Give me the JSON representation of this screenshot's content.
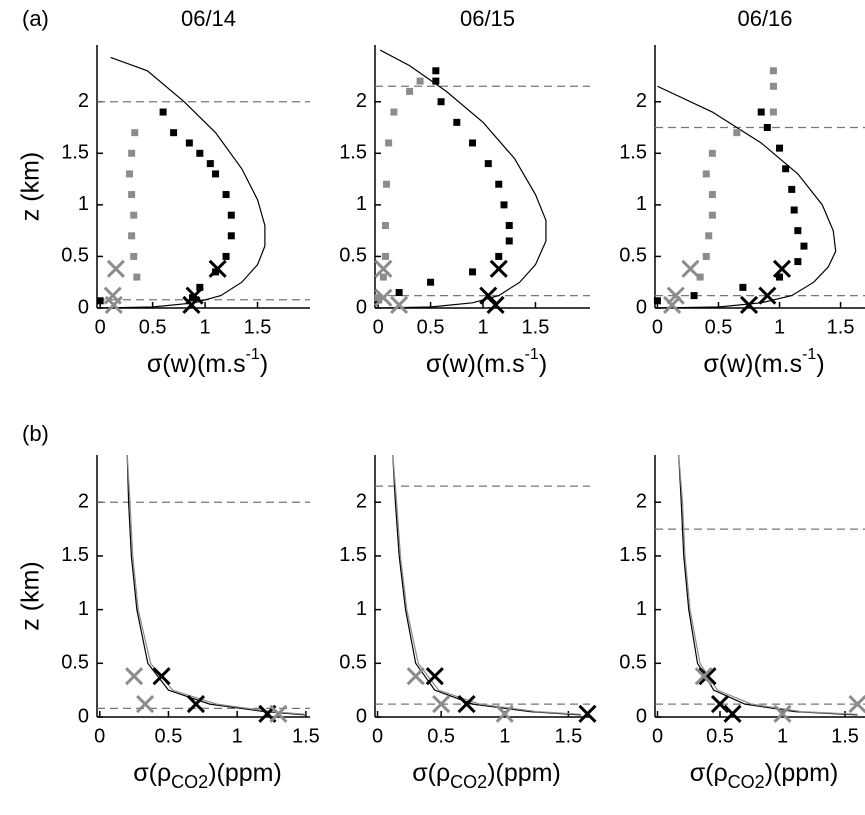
{
  "chart_data": [
    {
      "type": "scatter",
      "panel_label": "(a)",
      "title": "06/14",
      "ylabel": "z (km)",
      "xlabel": {
        "text": "σ(w)(m.s",
        "sup": "-1",
        "after": ")"
      },
      "xlim": [
        -0.03,
        2.0
      ],
      "ylim": [
        0,
        2.55
      ],
      "xticks": [
        0,
        0.5,
        1,
        1.5
      ],
      "yticks": [
        0,
        0.5,
        1,
        1.5,
        2
      ],
      "hlines": [
        2.0,
        0.08
      ],
      "series": [
        {
          "marker": "line",
          "color": "#000000",
          "x": [
            0,
            0.5,
            0.9,
            1.15,
            1.35,
            1.5,
            1.57,
            1.57,
            1.5,
            1.35,
            1.1,
            0.8,
            0.45,
            0.1
          ],
          "y": [
            0,
            0.01,
            0.05,
            0.12,
            0.25,
            0.42,
            0.6,
            0.8,
            1.05,
            1.35,
            1.7,
            2.0,
            2.3,
            2.43
          ]
        },
        {
          "marker": "square",
          "color": "#000000",
          "x": [
            0.6,
            0.7,
            0.85,
            0.95,
            1.05,
            1.1,
            1.2,
            1.25,
            1.25,
            1.2,
            1.1,
            0.95,
            0.88,
            0
          ],
          "y": [
            1.9,
            1.7,
            1.6,
            1.5,
            1.4,
            1.3,
            1.1,
            0.9,
            0.7,
            0.5,
            0.35,
            0.2,
            0.1,
            0.07
          ]
        },
        {
          "marker": "square",
          "color": "#8c8c8c",
          "x": [
            0.33,
            0.3,
            0.28,
            0.3,
            0.32,
            0.3,
            0.32,
            0.35
          ],
          "y": [
            1.7,
            1.5,
            1.3,
            1.1,
            0.9,
            0.7,
            0.5,
            0.3
          ]
        },
        {
          "marker": "x",
          "color": "#000000",
          "x": [
            1.12,
            0.9,
            0.87
          ],
          "y": [
            0.38,
            0.12,
            0.03
          ]
        },
        {
          "marker": "x",
          "color": "#8c8c8c",
          "x": [
            0.15,
            0.12,
            0.13
          ],
          "y": [
            0.38,
            0.12,
            0.03
          ]
        }
      ]
    },
    {
      "type": "scatter",
      "title": "06/15",
      "xlabel": {
        "text": "σ(w)(m.s",
        "sup": "-1",
        "after": ")"
      },
      "xlim": [
        -0.03,
        2.02
      ],
      "ylim": [
        0,
        2.55
      ],
      "xticks": [
        0,
        0.5,
        1,
        1.5
      ],
      "yticks": [
        0,
        0.5,
        1,
        1.5,
        2
      ],
      "hlines": [
        2.15,
        0.12
      ],
      "series": [
        {
          "marker": "line",
          "color": "#000000",
          "x": [
            0,
            0.5,
            0.9,
            1.15,
            1.35,
            1.5,
            1.6,
            1.6,
            1.5,
            1.3,
            1.0,
            0.65,
            0.3,
            0.02
          ],
          "y": [
            0,
            0.01,
            0.05,
            0.12,
            0.25,
            0.42,
            0.65,
            0.85,
            1.1,
            1.45,
            1.8,
            2.1,
            2.35,
            2.5
          ]
        },
        {
          "marker": "square",
          "color": "#000000",
          "x": [
            0.55,
            0.55,
            0.6,
            0.75,
            0.9,
            1.05,
            1.15,
            1.2,
            1.25,
            1.25,
            1.15,
            0.9,
            0.5,
            0.2,
            0
          ],
          "y": [
            2.3,
            2.2,
            2.0,
            1.8,
            1.6,
            1.4,
            1.2,
            1.0,
            0.8,
            0.65,
            0.5,
            0.35,
            0.25,
            0.15,
            0.08
          ]
        },
        {
          "marker": "square",
          "color": "#8c8c8c",
          "x": [
            0.4,
            0.3,
            0.15,
            0.1,
            0.08,
            0.07,
            0.07,
            0.05,
            0.0
          ],
          "y": [
            2.2,
            2.1,
            1.9,
            1.6,
            1.2,
            0.8,
            0.5,
            0.3,
            0.1
          ]
        },
        {
          "marker": "x",
          "color": "#000000",
          "x": [
            1.15,
            1.05,
            1.12
          ],
          "y": [
            0.38,
            0.12,
            0.03
          ]
        },
        {
          "marker": "x",
          "color": "#8c8c8c",
          "x": [
            0.05,
            0.05,
            0.2
          ],
          "y": [
            0.38,
            0.1,
            0.03
          ]
        }
      ]
    },
    {
      "type": "scatter",
      "title": "06/16",
      "xlabel": {
        "text": "σ(w)(m.s",
        "sup": "-1",
        "after": ")"
      },
      "xlim": [
        -0.02,
        1.7
      ],
      "ylim": [
        0,
        2.55
      ],
      "xticks": [
        0,
        0.5,
        1,
        1.5
      ],
      "yticks": [
        0,
        0.5,
        1,
        1.5,
        2
      ],
      "hlines": [
        1.75,
        0.12
      ],
      "series": [
        {
          "marker": "line",
          "color": "#000000",
          "x": [
            0,
            0.5,
            0.85,
            1.1,
            1.28,
            1.4,
            1.46,
            1.44,
            1.35,
            1.15,
            0.85,
            0.45,
            0
          ],
          "y": [
            0,
            0.01,
            0.05,
            0.12,
            0.25,
            0.4,
            0.55,
            0.75,
            1.0,
            1.3,
            1.6,
            1.9,
            2.15
          ]
        },
        {
          "marker": "square",
          "color": "#000000",
          "x": [
            0.85,
            0.9,
            1.0,
            1.05,
            1.1,
            1.12,
            1.15,
            1.2,
            1.15,
            1.0,
            0.7,
            0.3,
            0
          ],
          "y": [
            1.9,
            1.75,
            1.55,
            1.35,
            1.15,
            0.95,
            0.75,
            0.6,
            0.45,
            0.3,
            0.2,
            0.12,
            0.07
          ]
        },
        {
          "marker": "square",
          "color": "#8c8c8c",
          "x": [
            0.95,
            0.95,
            0.95,
            0.65,
            0.45,
            0.4,
            0.45,
            0.45,
            0.42,
            0.4,
            0.35
          ],
          "y": [
            2.3,
            2.15,
            1.9,
            1.7,
            1.5,
            1.3,
            1.1,
            0.9,
            0.7,
            0.5,
            0.3
          ]
        },
        {
          "marker": "x",
          "color": "#000000",
          "x": [
            1.02,
            0.9,
            0.75
          ],
          "y": [
            0.38,
            0.12,
            0.03
          ]
        },
        {
          "marker": "x",
          "color": "#8c8c8c",
          "x": [
            0.27,
            0.15,
            0.12
          ],
          "y": [
            0.38,
            0.12,
            0.03
          ]
        }
      ]
    },
    {
      "type": "scatter",
      "panel_label": "(b)",
      "ylabel": "z (km)",
      "xlabel": {
        "text": "σ(ρ",
        "sub": "CO2",
        "after": ")(ppm)"
      },
      "xlim": [
        -0.02,
        1.53
      ],
      "ylim": [
        0,
        2.44
      ],
      "xticks": [
        0,
        0.5,
        1,
        1.5
      ],
      "yticks": [
        0,
        0.5,
        1,
        1.5,
        2
      ],
      "hlines": [
        2.0,
        0.08
      ],
      "series": [
        {
          "marker": "line",
          "color": "#000000",
          "x": [
            0.2,
            0.21,
            0.23,
            0.27,
            0.35,
            0.5,
            0.8,
            1.2,
            1.5
          ],
          "y": [
            2.44,
            2.0,
            1.5,
            1.0,
            0.5,
            0.25,
            0.12,
            0.05,
            0.02
          ]
        },
        {
          "marker": "line",
          "color": "#8c8c8c",
          "x": [
            0.2,
            0.22,
            0.24,
            0.28,
            0.37,
            0.53,
            0.85,
            1.25,
            1.5
          ],
          "y": [
            2.44,
            2.0,
            1.5,
            1.0,
            0.5,
            0.25,
            0.12,
            0.05,
            0.025
          ]
        },
        {
          "marker": "x",
          "color": "#000000",
          "x": [
            0.45,
            0.7,
            1.22
          ],
          "y": [
            0.38,
            0.12,
            0.03
          ]
        },
        {
          "marker": "x",
          "color": "#8c8c8c",
          "x": [
            0.25,
            0.33,
            1.3
          ],
          "y": [
            0.38,
            0.12,
            0.03
          ]
        }
      ]
    },
    {
      "type": "scatter",
      "xlabel": {
        "text": "σ(ρ",
        "sub": "CO2",
        "after": ")(ppm)"
      },
      "xlim": [
        -0.02,
        1.67
      ],
      "ylim": [
        0,
        2.44
      ],
      "xticks": [
        0,
        0.5,
        1,
        1.5
      ],
      "yticks": [
        0,
        0.5,
        1,
        1.5,
        2
      ],
      "hlines": [
        2.15,
        0.12
      ],
      "series": [
        {
          "marker": "line",
          "color": "#000000",
          "x": [
            0.12,
            0.14,
            0.17,
            0.22,
            0.3,
            0.45,
            0.75,
            1.2,
            1.6
          ],
          "y": [
            2.44,
            2.0,
            1.5,
            1.0,
            0.5,
            0.25,
            0.12,
            0.05,
            0.02
          ]
        },
        {
          "marker": "line",
          "color": "#8c8c8c",
          "x": [
            0.12,
            0.15,
            0.18,
            0.23,
            0.32,
            0.48,
            0.8,
            1.25,
            1.6
          ],
          "y": [
            2.44,
            2.0,
            1.5,
            1.0,
            0.5,
            0.25,
            0.12,
            0.05,
            0.025
          ]
        },
        {
          "marker": "x",
          "color": "#000000",
          "x": [
            0.45,
            0.7,
            1.65
          ],
          "y": [
            0.38,
            0.12,
            0.03
          ]
        },
        {
          "marker": "x",
          "color": "#8c8c8c",
          "x": [
            0.3,
            0.5,
            1.0
          ],
          "y": [
            0.38,
            0.12,
            0.03
          ]
        }
      ]
    },
    {
      "type": "scatter",
      "xlabel": {
        "text": "σ(ρ",
        "sub": "CO2",
        "after": ")(ppm)"
      },
      "xlim": [
        -0.02,
        1.66
      ],
      "ylim": [
        0,
        2.44
      ],
      "xticks": [
        0,
        0.5,
        1,
        1.5
      ],
      "yticks": [
        0,
        0.5,
        1,
        1.5,
        2
      ],
      "hlines": [
        1.75,
        0.12
      ],
      "series": [
        {
          "marker": "line",
          "color": "#000000",
          "x": [
            0.17,
            0.19,
            0.21,
            0.25,
            0.32,
            0.45,
            0.7,
            1.1,
            1.6
          ],
          "y": [
            2.44,
            2.0,
            1.5,
            1.0,
            0.5,
            0.25,
            0.12,
            0.05,
            0.02
          ]
        },
        {
          "marker": "line",
          "color": "#8c8c8c",
          "x": [
            0.17,
            0.2,
            0.22,
            0.26,
            0.34,
            0.48,
            0.75,
            1.15,
            1.6
          ],
          "y": [
            2.44,
            2.0,
            1.5,
            1.0,
            0.5,
            0.25,
            0.12,
            0.05,
            0.025
          ]
        },
        {
          "marker": "x",
          "color": "#000000",
          "x": [
            0.4,
            0.5,
            0.6
          ],
          "y": [
            0.38,
            0.12,
            0.03
          ]
        },
        {
          "marker": "x",
          "color": "#8c8c8c",
          "x": [
            0.37,
            1.6,
            1.0
          ],
          "y": [
            0.38,
            0.12,
            0.03
          ]
        }
      ]
    }
  ]
}
